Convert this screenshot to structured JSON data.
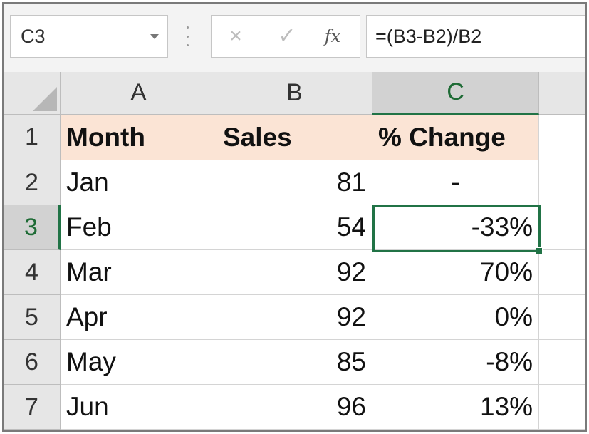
{
  "formula_bar": {
    "name_box": "C3",
    "cancel_icon": "×",
    "enter_icon": "✓",
    "function_icon": "fx",
    "formula": "=(B3-B2)/B2"
  },
  "columns": [
    "A",
    "B",
    "C"
  ],
  "rows": [
    "1",
    "2",
    "3",
    "4",
    "5",
    "6",
    "7"
  ],
  "cells": {
    "A1": "Month",
    "B1": "Sales",
    "C1": "% Change",
    "A2": "Jan",
    "B2": "81",
    "C2": "-",
    "A3": "Feb",
    "B3": "54",
    "C3": "-33%",
    "A4": "Mar",
    "B4": "92",
    "C4": "70%",
    "A5": "Apr",
    "B5": "92",
    "C5": "0%",
    "A6": "May",
    "B6": "85",
    "C6": "-8%",
    "A7": "Jun",
    "B7": "96",
    "C7": "13%"
  },
  "colors": {
    "header_fill": "#fbe4d5",
    "selection": "#217346"
  }
}
